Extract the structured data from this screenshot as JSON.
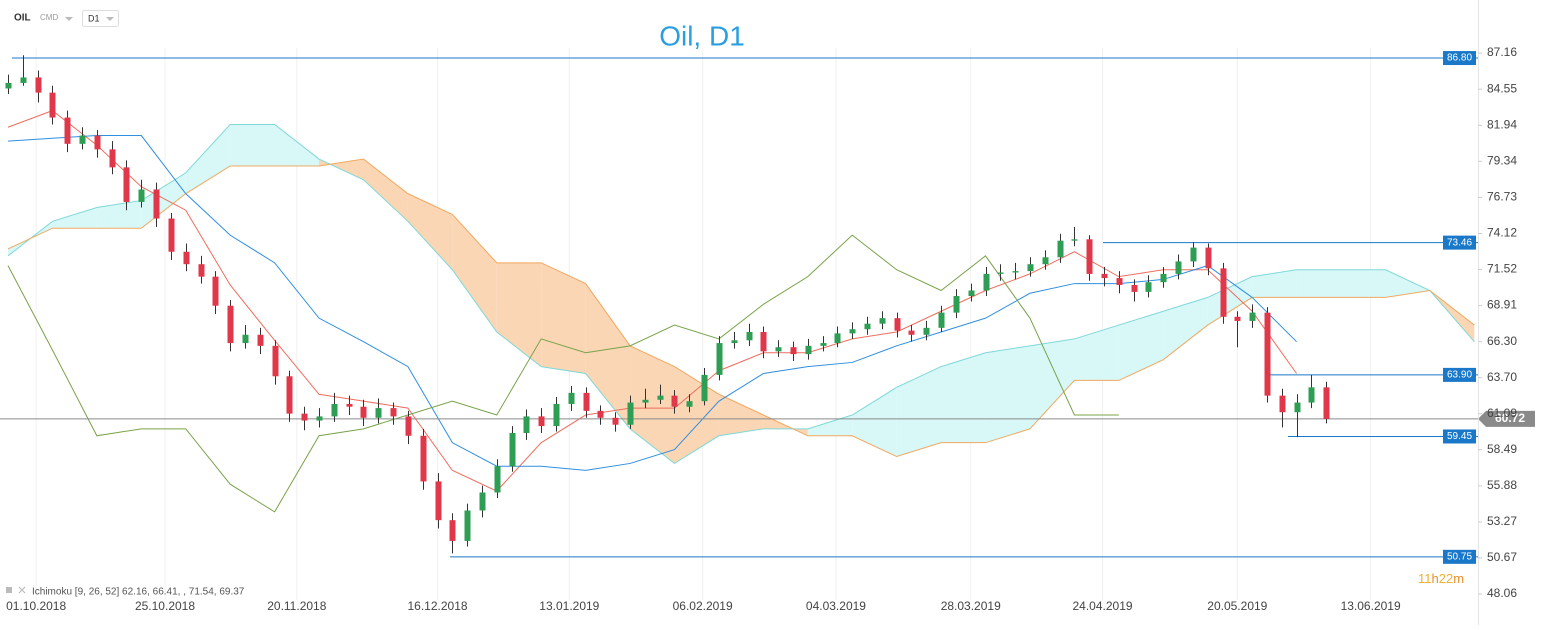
{
  "chart_data": {
    "type": "candlestick",
    "title": "Oil, D1",
    "symbol": "OIL",
    "market": "CMD",
    "timeframe": "D1",
    "open": [
      84.6,
      85.0,
      85.4,
      84.3,
      82.5,
      80.6,
      81.2,
      80.2,
      78.9,
      76.4,
      77.3,
      75.2,
      72.8,
      71.9,
      71.0,
      68.9,
      66.2,
      66.8,
      66.0,
      63.8,
      61.1,
      60.6,
      60.9,
      61.8,
      61.6,
      60.8,
      61.5,
      60.9,
      59.5,
      56.2,
      53.4,
      51.9,
      54.1,
      55.4,
      57.3,
      59.7,
      60.9,
      60.2,
      61.8,
      62.6,
      61.3,
      60.8,
      60.3,
      61.9,
      62.1,
      62.4,
      61.6,
      62.0,
      63.9,
      66.2,
      66.4,
      67.0,
      65.6,
      65.9,
      65.4,
      66.0,
      66.2,
      66.9,
      67.2,
      67.6,
      68.0,
      67.1,
      66.8,
      67.3,
      68.4,
      69.6,
      70.0,
      71.2,
      71.3,
      71.4,
      71.9,
      72.4,
      73.6,
      73.7,
      71.2,
      70.9,
      70.4,
      69.9,
      70.6,
      71.2,
      72.1,
      73.1,
      71.6,
      68.1,
      67.8,
      68.4,
      62.4,
      61.2,
      61.9,
      63.0
    ],
    "high": [
      85.6,
      87.0,
      85.9,
      84.8,
      83.0,
      81.8,
      81.6,
      80.8,
      79.4,
      78.0,
      77.8,
      75.6,
      73.4,
      72.5,
      71.4,
      69.3,
      67.5,
      67.3,
      66.4,
      64.2,
      61.6,
      61.5,
      62.6,
      62.4,
      62.1,
      62.2,
      61.9,
      61.3,
      60.0,
      56.8,
      53.9,
      54.6,
      55.9,
      57.8,
      60.2,
      61.4,
      61.5,
      62.3,
      63.1,
      63.0,
      61.7,
      61.2,
      62.4,
      62.9,
      63.2,
      62.8,
      62.5,
      64.4,
      66.7,
      67.0,
      67.6,
      67.4,
      66.4,
      66.3,
      66.5,
      66.7,
      67.4,
      67.7,
      68.1,
      68.5,
      68.4,
      67.5,
      67.8,
      68.9,
      70.1,
      70.5,
      71.7,
      71.9,
      72.0,
      72.4,
      72.9,
      74.1,
      74.6,
      74.0,
      71.7,
      71.4,
      70.8,
      71.1,
      71.7,
      72.6,
      73.5,
      73.4,
      72.0,
      68.5,
      69.0,
      68.8,
      62.9,
      62.5,
      63.9,
      63.4
    ],
    "low": [
      84.2,
      84.8,
      83.6,
      82.0,
      80.0,
      80.2,
      79.6,
      78.4,
      75.8,
      76.0,
      74.6,
      72.2,
      71.4,
      70.5,
      68.3,
      65.6,
      65.8,
      65.4,
      63.2,
      60.5,
      59.9,
      60.1,
      60.5,
      61.0,
      60.2,
      60.4,
      60.3,
      58.9,
      55.6,
      52.8,
      51.0,
      51.5,
      53.6,
      55.0,
      56.9,
      59.2,
      59.7,
      59.8,
      61.3,
      60.8,
      60.3,
      59.8,
      60.0,
      61.5,
      61.8,
      61.1,
      61.2,
      61.7,
      63.5,
      65.8,
      66.0,
      65.1,
      65.2,
      64.9,
      65.0,
      65.6,
      65.9,
      66.5,
      66.8,
      67.2,
      66.6,
      66.3,
      66.4,
      67.0,
      68.0,
      69.2,
      69.6,
      70.7,
      70.8,
      71.0,
      71.5,
      72.0,
      73.2,
      70.7,
      70.3,
      69.8,
      69.2,
      69.5,
      70.2,
      70.8,
      71.7,
      71.1,
      67.6,
      65.9,
      67.3,
      61.9,
      60.1,
      59.4,
      61.5,
      60.4
    ],
    "close": [
      85.0,
      85.4,
      84.3,
      82.5,
      80.6,
      81.2,
      80.2,
      78.9,
      76.4,
      77.3,
      75.2,
      72.8,
      71.9,
      71.0,
      68.9,
      66.2,
      66.8,
      66.0,
      63.8,
      61.1,
      60.6,
      60.9,
      61.8,
      61.6,
      60.8,
      61.5,
      60.9,
      59.5,
      56.2,
      53.4,
      51.9,
      54.1,
      55.4,
      57.3,
      59.7,
      60.9,
      60.2,
      61.8,
      62.6,
      61.3,
      60.8,
      60.3,
      61.9,
      62.1,
      62.4,
      61.6,
      62.0,
      63.9,
      66.2,
      66.4,
      67.0,
      65.6,
      65.9,
      65.4,
      66.0,
      66.2,
      66.9,
      67.2,
      67.6,
      68.0,
      67.1,
      66.8,
      67.3,
      68.4,
      69.6,
      70.0,
      71.2,
      71.3,
      71.4,
      71.9,
      72.4,
      73.6,
      73.7,
      71.2,
      70.9,
      70.4,
      69.9,
      70.6,
      71.2,
      72.1,
      73.1,
      71.6,
      68.1,
      67.8,
      68.4,
      62.4,
      61.2,
      61.9,
      63.0,
      60.72
    ],
    "up_color": "#2e9e55",
    "down_color": "#e0384a",
    "xlim": [
      -0.54,
      99.25
    ],
    "xticks": [
      {
        "value": 1.9,
        "label": "01.10.2018"
      },
      {
        "value": 10.6,
        "label": "25.10.2018"
      },
      {
        "value": 19.5,
        "label": "20.11.2018"
      },
      {
        "value": 29.0,
        "label": "16.12.2018"
      },
      {
        "value": 37.9,
        "label": "13.01.2019"
      },
      {
        "value": 46.9,
        "label": "06.02.2019"
      },
      {
        "value": 55.9,
        "label": "04.03.2019"
      },
      {
        "value": 65.0,
        "label": "28.03.2019"
      },
      {
        "value": 73.9,
        "label": "24.04.2019"
      },
      {
        "value": 83.0,
        "label": "20.05.2019"
      },
      {
        "value": 92.0,
        "label": "13.06.2019"
      }
    ],
    "ylim": [
      47.63,
      89.55
    ],
    "yticks": [
      87.16,
      84.55,
      81.94,
      79.34,
      76.73,
      74.12,
      71.52,
      68.91,
      {
        "value": 66.3,
        "label": "66.30"
      },
      {
        "value": 63.7,
        "label": "63.70"
      },
      61.09,
      58.49,
      55.88,
      53.27,
      50.67,
      48.06
    ],
    "grid": true,
    "levels": [
      {
        "value": 86.8,
        "label": "86.80"
      },
      73.46,
      {
        "value": 63.9,
        "label": "63.90"
      },
      59.45,
      50.75
    ],
    "level_color": "#1a78c8",
    "last_price": 60.72,
    "indicator": {
      "label": "Ichimoku [9, 26, 52] 62.16, 66.41, , 71.54, 69.37",
      "x": [
        0,
        3,
        6,
        9,
        12,
        15,
        18,
        21,
        24,
        27,
        30,
        33,
        36,
        39,
        42,
        45,
        48,
        51,
        54,
        57,
        60,
        63,
        66,
        69,
        72,
        75,
        78,
        81,
        84,
        87,
        90,
        93,
        96,
        99
      ],
      "lines": [
        {
          "color": "#ee6e5e",
          "values": [
            81.8,
            83.0,
            80.5,
            77.5,
            75.8,
            70.4,
            66.4,
            62.5,
            62.0,
            61.5,
            57.0,
            55.5,
            59.0,
            61.0,
            61.5,
            61.5,
            64.2,
            65.5,
            65.5,
            66.5,
            67.0,
            68.5,
            70.0,
            71.2,
            72.8,
            71.0,
            71.5,
            71.5,
            68.5,
            64.0,
            null,
            null,
            null,
            null
          ]
        },
        {
          "color": "#2f8fe0",
          "values": [
            80.8,
            81.0,
            81.2,
            81.2,
            77.0,
            74.0,
            72.0,
            68.0,
            66.3,
            64.5,
            59.0,
            57.3,
            57.3,
            57.0,
            57.5,
            58.5,
            62.0,
            64.0,
            64.5,
            64.8,
            66.0,
            67.0,
            68.0,
            69.8,
            70.5,
            70.5,
            70.8,
            71.8,
            69.5,
            66.3,
            null,
            null,
            null,
            null
          ]
        },
        {
          "color": "#7aa34a",
          "values": [
            71.8,
            65.7,
            59.5,
            60.0,
            60.0,
            56.0,
            54.0,
            59.5,
            60.0,
            61.0,
            62.0,
            61.0,
            66.5,
            65.5,
            66.0,
            67.5,
            66.5,
            69.0,
            71.0,
            74.0,
            71.5,
            70.0,
            72.5,
            68.0,
            61.0,
            61.0,
            null,
            null,
            null,
            null,
            null,
            null,
            null,
            null
          ]
        }
      ],
      "span_a": {
        "color": "#7fd8d8",
        "values": [
          72.5,
          75.0,
          76.0,
          76.5,
          78.5,
          82.0,
          82.0,
          79.5,
          78.0,
          75.0,
          71.5,
          67.0,
          64.5,
          64.0,
          60.0,
          57.5,
          59.5,
          60.0,
          60.0,
          61.0,
          63.0,
          64.5,
          65.5,
          66.0,
          66.5,
          67.5,
          68.5,
          69.5,
          71.0,
          71.5,
          71.5,
          71.5,
          70.0,
          66.3
        ]
      },
      "span_b": {
        "color": "#f0a860",
        "values": [
          73.0,
          74.5,
          74.5,
          74.5,
          77.0,
          79.0,
          79.0,
          79.0,
          79.5,
          77.0,
          75.5,
          72.0,
          72.0,
          70.5,
          66.0,
          64.5,
          62.5,
          61.0,
          59.5,
          59.5,
          58.0,
          59.0,
          59.0,
          60.0,
          63.5,
          63.5,
          65.0,
          67.5,
          69.5,
          69.5,
          69.5,
          69.5,
          70.0,
          67.5
        ]
      },
      "cloud_up_color": "#d8f8f8",
      "cloud_down_color": "#fad6b4"
    },
    "timer": [
      "11",
      "h",
      "22",
      "m"
    ]
  }
}
